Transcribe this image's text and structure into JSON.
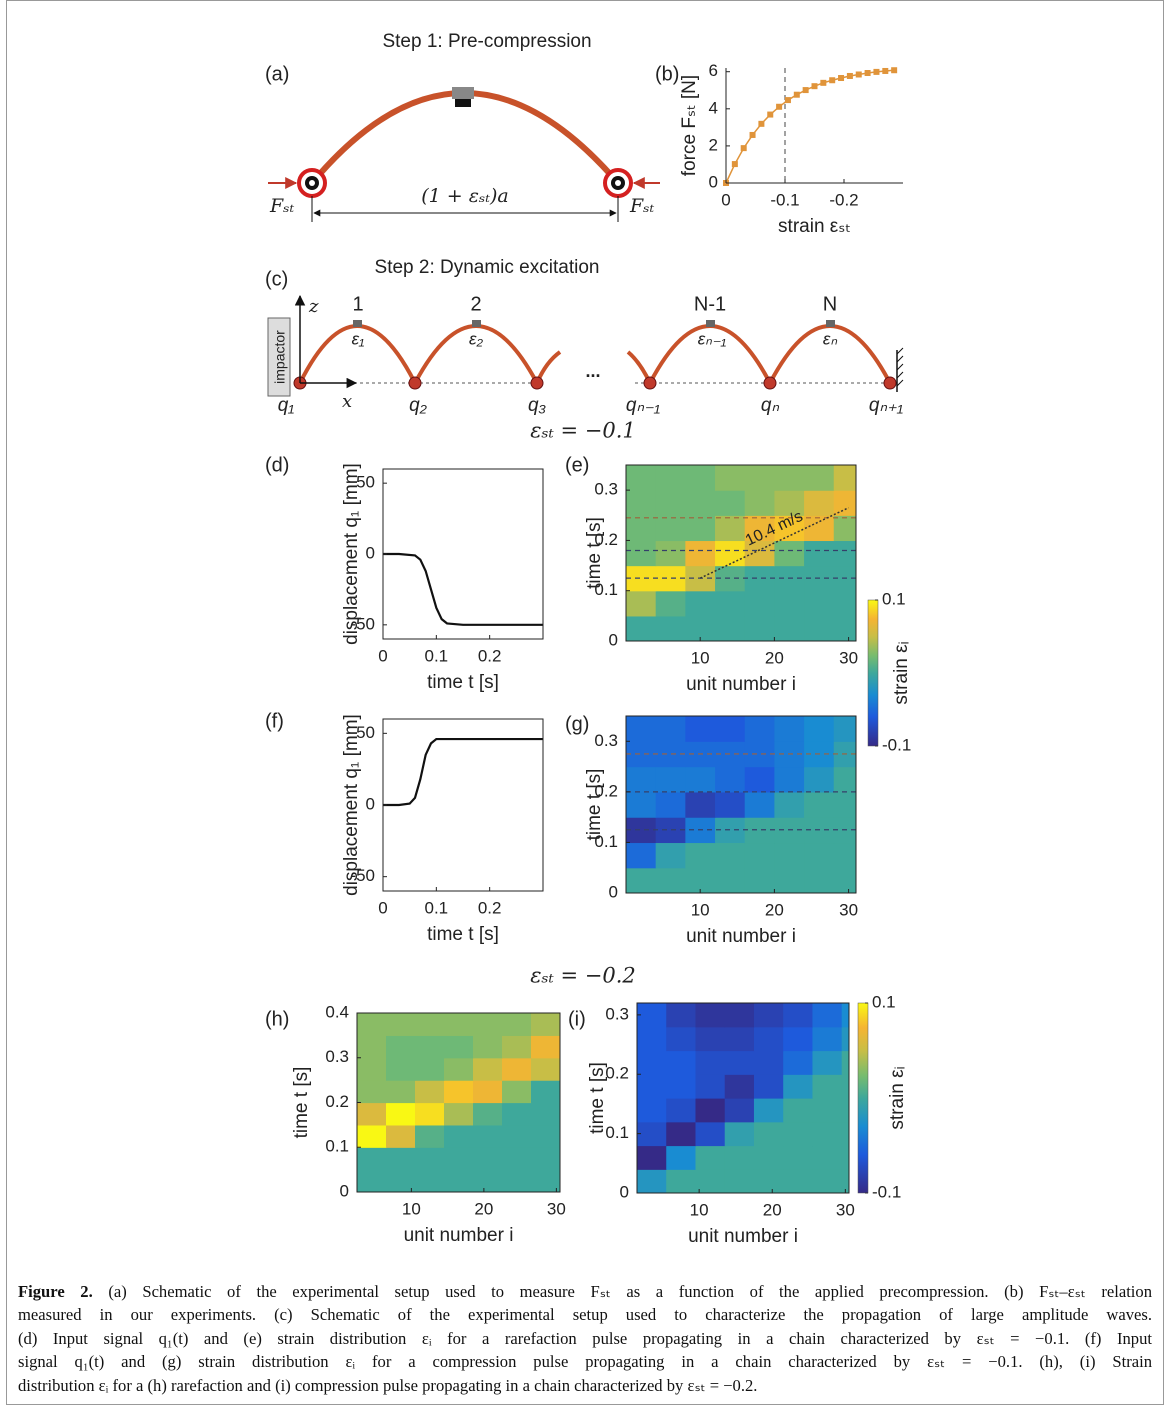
{
  "figure": {
    "step1": "Step 1: Pre-compression",
    "step2": "Step 2: Dynamic excitation",
    "panel_a": "(a)",
    "panel_c": "(c)",
    "schematic_a": {
      "force_left": "Fₛₜ",
      "force_right": "Fₛₜ",
      "span": "(1 + εₛₜ)a"
    },
    "schematic_c": {
      "axis_z": "z",
      "axis_x": "x",
      "impactor": "impactor",
      "units": [
        "1",
        "2",
        "N-1",
        "N"
      ],
      "strains": [
        "ε₁",
        "ε₂",
        "εₙ₋₁",
        "εₙ"
      ],
      "nodes": [
        "q₁",
        "q₂",
        "q₃",
        "qₙ₋₁",
        "qₙ",
        "qₙ₊₁"
      ],
      "ellipsis": "..."
    },
    "case1": "εₛₜ = −0.1",
    "case2": "εₛₜ = −0.2"
  },
  "chart_data": [
    {
      "type": "line",
      "label": "(b)",
      "xlabel": "strain εₛₜ",
      "ylabel": "force Fₛₜ [N]",
      "markers": true,
      "color": "#e0943a",
      "x": [
        0,
        -0.015,
        -0.03,
        -0.045,
        -0.06,
        -0.075,
        -0.09,
        -0.105,
        -0.12,
        -0.135,
        -0.15,
        -0.165,
        -0.18,
        -0.195,
        -0.21,
        -0.225,
        -0.24,
        -0.255,
        -0.27,
        -0.285
      ],
      "values": [
        0,
        1.02,
        1.88,
        2.59,
        3.19,
        3.69,
        4.11,
        4.47,
        4.76,
        5.01,
        5.22,
        5.4,
        5.54,
        5.66,
        5.77,
        5.85,
        5.93,
        5.99,
        6.04,
        6.08
      ],
      "xlim": [
        0,
        -0.3
      ],
      "ylim": [
        0,
        6.2
      ],
      "xticks": [
        0,
        -0.1,
        -0.2
      ],
      "yticks": [
        0,
        2,
        4,
        6
      ],
      "vline": -0.1
    },
    {
      "type": "line",
      "label": "(d)",
      "xlabel": "time  t  [s]",
      "ylabel": "displacement q₁ [mm]",
      "color": "#111111",
      "x": [
        0,
        0.03,
        0.06,
        0.07,
        0.08,
        0.09,
        0.1,
        0.11,
        0.12,
        0.15,
        0.2,
        0.25,
        0.3
      ],
      "values": [
        0,
        0,
        -1,
        -4,
        -12,
        -25,
        -38,
        -46,
        -49,
        -50,
        -50,
        -50,
        -50
      ],
      "xlim": [
        0,
        0.3
      ],
      "ylim": [
        -60,
        60
      ],
      "xticks": [
        0,
        0.1,
        0.2
      ],
      "yticks": [
        -50,
        0,
        50
      ]
    },
    {
      "type": "heatmap",
      "label": "(e)",
      "xlabel": "unit number i",
      "ylabel": "time t [s]",
      "x": [
        2,
        6,
        10,
        14,
        18,
        22,
        26,
        30
      ],
      "y": [
        0.025,
        0.075,
        0.125,
        0.175,
        0.225,
        0.275,
        0.325
      ],
      "values": [
        [
          0,
          0,
          0,
          0,
          0,
          0,
          0,
          0
        ],
        [
          0.04,
          0.01,
          0,
          0,
          0,
          0,
          0,
          0
        ],
        [
          0.09,
          0.09,
          0.05,
          0.01,
          0,
          0,
          0,
          0
        ],
        [
          0.02,
          0.03,
          0.07,
          0.09,
          0.06,
          0.02,
          0,
          0
        ],
        [
          0.02,
          0.02,
          0.02,
          0.04,
          0.07,
          0.08,
          0.07,
          0.03
        ],
        [
          0.02,
          0.02,
          0.02,
          0.02,
          0.03,
          0.04,
          0.06,
          0.07
        ],
        [
          0.02,
          0.02,
          0.02,
          0.03,
          0.03,
          0.03,
          0.03,
          0.05
        ]
      ],
      "clim": [
        -0.1,
        0.1
      ],
      "xlim": [
        0,
        31
      ],
      "ylim": [
        0,
        0.35
      ],
      "xticks": [
        10,
        20,
        30
      ],
      "yticks": [
        0,
        0.1,
        0.2,
        0.3
      ],
      "hlines": [
        0.125,
        0.18,
        0.245
      ],
      "annotation": {
        "text": "10.4 m/s",
        "x": [
          10,
          30
        ],
        "y": [
          0.125,
          0.265
        ]
      },
      "colorbar": {
        "ticks": [
          0.1,
          -0.1
        ],
        "label": "strain εᵢ"
      }
    },
    {
      "type": "line",
      "label": "(f)",
      "xlabel": "time  t  [s]",
      "ylabel": "displacement q₁ [mm]",
      "color": "#111111",
      "x": [
        0,
        0.03,
        0.05,
        0.06,
        0.07,
        0.08,
        0.09,
        0.1,
        0.11,
        0.15,
        0.2,
        0.25,
        0.3
      ],
      "values": [
        0,
        0,
        1,
        5,
        18,
        35,
        43,
        46,
        46,
        46,
        46,
        46,
        46
      ],
      "xlim": [
        0,
        0.3
      ],
      "ylim": [
        -60,
        60
      ],
      "xticks": [
        0,
        0.1,
        0.2
      ],
      "yticks": [
        -50,
        0,
        50
      ]
    },
    {
      "type": "heatmap",
      "label": "(g)",
      "xlabel": "unit number i",
      "ylabel": "time t [s]",
      "x": [
        2,
        6,
        10,
        14,
        18,
        22,
        26,
        30
      ],
      "y": [
        0.025,
        0.075,
        0.125,
        0.175,
        0.225,
        0.275,
        0.325
      ],
      "values": [
        [
          0,
          0,
          0,
          0,
          0,
          0,
          0,
          0
        ],
        [
          -0.05,
          -0.01,
          0,
          0,
          0,
          0,
          0,
          0
        ],
        [
          -0.09,
          -0.08,
          -0.04,
          -0.01,
          0,
          0,
          0,
          0
        ],
        [
          -0.04,
          -0.05,
          -0.08,
          -0.07,
          -0.04,
          -0.01,
          0,
          0
        ],
        [
          -0.04,
          -0.04,
          -0.04,
          -0.05,
          -0.06,
          -0.04,
          -0.02,
          0
        ],
        [
          -0.05,
          -0.05,
          -0.05,
          -0.05,
          -0.05,
          -0.04,
          -0.03,
          -0.01
        ],
        [
          -0.05,
          -0.05,
          -0.06,
          -0.06,
          -0.05,
          -0.04,
          -0.03,
          -0.02
        ]
      ],
      "clim": [
        -0.1,
        0.1
      ],
      "xlim": [
        0,
        31
      ],
      "ylim": [
        0,
        0.35
      ],
      "xticks": [
        10,
        20,
        30
      ],
      "yticks": [
        0,
        0.1,
        0.2,
        0.3
      ],
      "hlines": [
        0.125,
        0.2,
        0.275
      ]
    },
    {
      "type": "heatmap",
      "label": "(h)",
      "xlabel": "unit number i",
      "ylabel": "time t [s]",
      "x": [
        4.5,
        8.5,
        12.5,
        16.5,
        20.5,
        24.5,
        28.5
      ],
      "y": [
        0.025,
        0.075,
        0.125,
        0.175,
        0.225,
        0.275,
        0.325,
        0.375
      ],
      "values": [
        [
          0,
          0,
          0,
          0,
          0,
          0,
          0
        ],
        [
          0,
          0,
          0,
          0,
          0,
          0,
          0
        ],
        [
          0.1,
          0.06,
          0.01,
          0,
          0,
          0,
          0
        ],
        [
          0.06,
          0.1,
          0.09,
          0.04,
          0.01,
          0,
          0
        ],
        [
          0.03,
          0.03,
          0.05,
          0.08,
          0.07,
          0.03,
          0
        ],
        [
          0.03,
          0.02,
          0.02,
          0.03,
          0.05,
          0.07,
          0.05
        ],
        [
          0.03,
          0.02,
          0.02,
          0.02,
          0.03,
          0.04,
          0.07
        ],
        [
          0.03,
          0.03,
          0.03,
          0.03,
          0.03,
          0.03,
          0.04
        ]
      ],
      "clim": [
        -0.1,
        0.1
      ],
      "xlim": [
        2.5,
        30.5
      ],
      "ylim": [
        0,
        0.4
      ],
      "xticks": [
        10,
        20,
        30
      ],
      "yticks": [
        0,
        0.1,
        0.2,
        0.3,
        0.4
      ]
    },
    {
      "type": "heatmap",
      "label": "(i)",
      "xlabel": "unit number i",
      "ylabel": "time t [s]",
      "x": [
        3.5,
        7.5,
        11.5,
        15.5,
        19.5,
        23.5,
        27.5,
        31.5
      ],
      "y": [
        0.02,
        0.06,
        0.1,
        0.14,
        0.18,
        0.22,
        0.26,
        0.3
      ],
      "values": [
        [
          -0.02,
          0,
          0,
          0,
          0,
          0,
          0,
          0
        ],
        [
          -0.1,
          -0.03,
          0,
          0,
          0,
          0,
          0,
          0
        ],
        [
          -0.07,
          -0.1,
          -0.07,
          -0.01,
          0,
          0,
          0,
          0
        ],
        [
          -0.06,
          -0.07,
          -0.1,
          -0.08,
          -0.02,
          0,
          0,
          0
        ],
        [
          -0.06,
          -0.06,
          -0.07,
          -0.09,
          -0.07,
          -0.02,
          0,
          0
        ],
        [
          -0.06,
          -0.06,
          -0.07,
          -0.07,
          -0.07,
          -0.05,
          -0.02,
          0
        ],
        [
          -0.06,
          -0.07,
          -0.08,
          -0.08,
          -0.07,
          -0.06,
          -0.04,
          -0.02
        ],
        [
          -0.06,
          -0.08,
          -0.09,
          -0.09,
          -0.08,
          -0.07,
          -0.05,
          -0.03
        ]
      ],
      "clim": [
        -0.1,
        0.1
      ],
      "xlim": [
        1.5,
        30.5
      ],
      "ylim": [
        0,
        0.32
      ],
      "xticks": [
        10,
        20,
        30
      ],
      "yticks": [
        0,
        0.1,
        0.2,
        0.3
      ],
      "colorbar": {
        "ticks": [
          0.1,
          -0.1
        ],
        "label": "strain εᵢ"
      }
    }
  ],
  "caption": {
    "label": "Figure 2.",
    "lines": [
      " (a) Schematic of the experimental setup used to measure Fₛₜ as a function of the applied precompression. (b) Fₛₜ–εₛₜ relation",
      "measured in our experiments. (c) Schematic of the experimental setup used to characterize the propagation of large amplitude waves.",
      "(d) Input signal q₁(t) and (e) strain distribution εᵢ for a rarefaction pulse propagating in a chain characterized by εₛₜ = −0.1. (f) Input",
      "signal q₁(t) and (g) strain distribution εᵢ for a compression pulse propagating in a chain characterized by εₛₜ = −0.1. (h), (i) Strain",
      "distribution εᵢ for a (h) rarefaction and (i) compression pulse propagating in a chain characterized by εₛₜ = −0.2."
    ]
  }
}
